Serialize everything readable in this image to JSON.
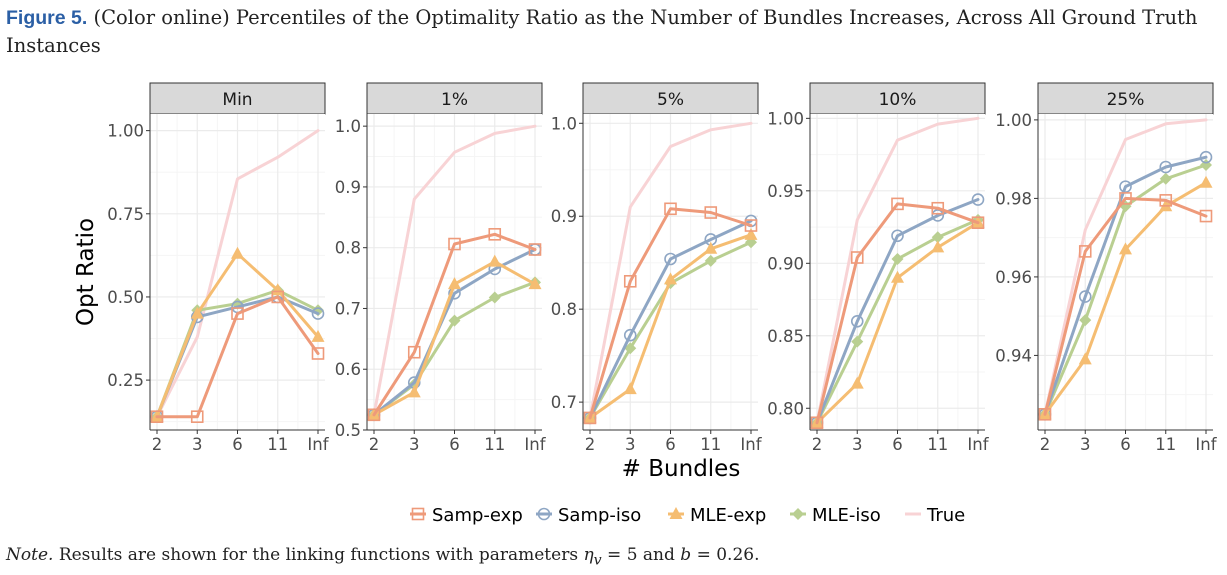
{
  "caption": {
    "label": "Figure 5.",
    "text": "(Color online) Percentiles of the Optimality Ratio as the Number of Bundles Increases, Across All Ground Truth Instances"
  },
  "note": {
    "label": "Note.",
    "text_before": "Results are shown for the linking functions with parameters",
    "eta": "η",
    "eta_sub": "v",
    "text_mid": "= 5 and",
    "b_var": "b",
    "text_end": "= 0.26."
  },
  "colors": {
    "Samp-exp": "#ee9a7a",
    "Samp-iso": "#8ea6c4",
    "MLE-exp": "#f5bd72",
    "MLE-iso": "#b9cf91",
    "True": "#f8d3d5",
    "strip_fill": "#d9d9d9",
    "grid_major": "#ebebeb",
    "grid_minor": "#f5f5f5"
  },
  "chart_data": {
    "type": "line",
    "xlabel": "# Bundles",
    "ylabel": "Opt Ratio",
    "x_categories": [
      "2",
      "3",
      "6",
      "11",
      "Inf"
    ],
    "legend_position": "bottom",
    "legend": [
      {
        "name": "Samp-exp",
        "marker": "open-square"
      },
      {
        "name": "Samp-iso",
        "marker": "open-circle"
      },
      {
        "name": "MLE-exp",
        "marker": "filled-triangle"
      },
      {
        "name": "MLE-iso",
        "marker": "filled-diamond"
      },
      {
        "name": "True",
        "marker": "none"
      }
    ],
    "panels": [
      {
        "title": "Min",
        "ylim": [
          0.1,
          1.05
        ],
        "yticks": [
          0.25,
          0.5,
          0.75,
          1.0
        ],
        "ytick_labels": [
          "0.25",
          "0.50",
          "0.75",
          "1.00"
        ],
        "series": [
          {
            "name": "True",
            "values": [
              0.14,
              0.38,
              0.855,
              0.92,
              1.0
            ]
          },
          {
            "name": "MLE-iso",
            "values": [
              0.14,
              0.46,
              0.48,
              0.52,
              0.46
            ]
          },
          {
            "name": "Samp-iso",
            "values": [
              0.14,
              0.44,
              0.47,
              0.5,
              0.45
            ]
          },
          {
            "name": "MLE-exp",
            "values": [
              0.14,
              0.45,
              0.63,
              0.52,
              0.38
            ]
          },
          {
            "name": "Samp-exp",
            "values": [
              0.14,
              0.14,
              0.45,
              0.5,
              0.33
            ]
          }
        ]
      },
      {
        "title": "1%",
        "ylim": [
          0.5,
          1.02
        ],
        "yticks": [
          0.5,
          0.6,
          0.7,
          0.8,
          0.9,
          1.0
        ],
        "ytick_labels": [
          "0.5",
          "0.6",
          "0.7",
          "0.8",
          "0.9",
          "1.0"
        ],
        "series": [
          {
            "name": "True",
            "values": [
              0.525,
              0.88,
              0.957,
              0.988,
              1.0
            ]
          },
          {
            "name": "MLE-iso",
            "values": [
              0.525,
              0.575,
              0.68,
              0.718,
              0.743
            ]
          },
          {
            "name": "Samp-iso",
            "values": [
              0.525,
              0.578,
              0.725,
              0.765,
              0.797
            ]
          },
          {
            "name": "MLE-exp",
            "values": [
              0.525,
              0.562,
              0.74,
              0.777,
              0.74
            ]
          },
          {
            "name": "Samp-exp",
            "values": [
              0.525,
              0.628,
              0.806,
              0.822,
              0.797
            ]
          }
        ]
      },
      {
        "title": "5%",
        "ylim": [
          0.67,
          1.01
        ],
        "yticks": [
          0.7,
          0.8,
          0.9,
          1.0
        ],
        "ytick_labels": [
          "0.7",
          "0.8",
          "0.9",
          "1.0"
        ],
        "series": [
          {
            "name": "True",
            "values": [
              0.683,
              0.91,
              0.975,
              0.993,
              1.0
            ]
          },
          {
            "name": "MLE-iso",
            "values": [
              0.683,
              0.758,
              0.828,
              0.852,
              0.872
            ]
          },
          {
            "name": "Samp-iso",
            "values": [
              0.683,
              0.772,
              0.854,
              0.875,
              0.895
            ]
          },
          {
            "name": "MLE-exp",
            "values": [
              0.683,
              0.714,
              0.832,
              0.865,
              0.88
            ]
          },
          {
            "name": "Samp-exp",
            "values": [
              0.683,
              0.83,
              0.908,
              0.904,
              0.89
            ]
          }
        ]
      },
      {
        "title": "10%",
        "ylim": [
          0.785,
          1.003
        ],
        "yticks": [
          0.8,
          0.85,
          0.9,
          0.95,
          1.0
        ],
        "ytick_labels": [
          "0.80",
          "0.85",
          "0.90",
          "0.95",
          "1.00"
        ],
        "series": [
          {
            "name": "True",
            "values": [
              0.79,
              0.93,
              0.985,
              0.996,
              1.0
            ]
          },
          {
            "name": "MLE-iso",
            "values": [
              0.79,
              0.846,
              0.903,
              0.918,
              0.93
            ]
          },
          {
            "name": "Samp-iso",
            "values": [
              0.79,
              0.86,
              0.919,
              0.933,
              0.944
            ]
          },
          {
            "name": "MLE-exp",
            "values": [
              0.79,
              0.817,
              0.89,
              0.911,
              0.928
            ]
          },
          {
            "name": "Samp-exp",
            "values": [
              0.79,
              0.904,
              0.941,
              0.938,
              0.928
            ]
          }
        ]
      },
      {
        "title": "25%",
        "ylim": [
          0.921,
          1.0015
        ],
        "yticks": [
          0.94,
          0.96,
          0.98,
          1.0
        ],
        "ytick_labels": [
          "0.94",
          "0.96",
          "0.98",
          "1.00"
        ],
        "series": [
          {
            "name": "True",
            "values": [
              0.925,
              0.972,
              0.995,
              0.999,
              1.0
            ]
          },
          {
            "name": "MLE-iso",
            "values": [
              0.925,
              0.949,
              0.978,
              0.985,
              0.9885
            ]
          },
          {
            "name": "Samp-iso",
            "values": [
              0.925,
              0.955,
              0.983,
              0.988,
              0.9905
            ]
          },
          {
            "name": "MLE-exp",
            "values": [
              0.925,
              0.939,
              0.967,
              0.978,
              0.984
            ]
          },
          {
            "name": "Samp-exp",
            "values": [
              0.925,
              0.9665,
              0.98,
              0.9795,
              0.9755
            ]
          }
        ]
      }
    ]
  }
}
